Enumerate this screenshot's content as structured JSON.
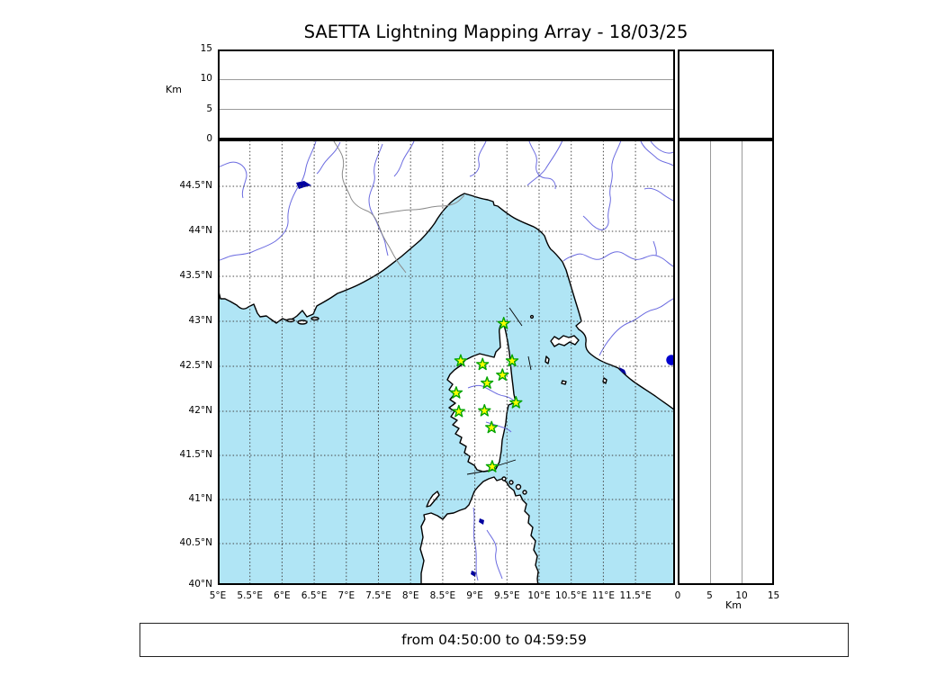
{
  "title": "SAETTA Lightning Mapping Array - 18/03/25",
  "footer": {
    "time_range": "from 04:50:00 to 04:59:59"
  },
  "colors": {
    "sea": "#b0e5f5",
    "land": "#ffffff",
    "coast": "#000000",
    "river": "#6b6be0",
    "lake": "#0000a0",
    "admin_border": "#8a8a8a",
    "grid": "#444444",
    "station_fill": "#ffff00",
    "station_stroke": "#00a400",
    "source_dot": "#0000cc"
  },
  "axes": {
    "map_x": {
      "ticks": [
        {
          "label": "5°E",
          "value": 5
        },
        {
          "label": "5.5°E",
          "value": 5.5
        },
        {
          "label": "6°E",
          "value": 6
        },
        {
          "label": "6.5°E",
          "value": 6.5
        },
        {
          "label": "7°E",
          "value": 7
        },
        {
          "label": "7.5°E",
          "value": 7.5
        },
        {
          "label": "8°E",
          "value": 8
        },
        {
          "label": "8.5°E",
          "value": 8.5
        },
        {
          "label": "9°E",
          "value": 9
        },
        {
          "label": "9.5°E",
          "value": 9.5
        },
        {
          "label": "10°E",
          "value": 10
        },
        {
          "label": "10.5°E",
          "value": 10.5
        },
        {
          "label": "11°E",
          "value": 11
        },
        {
          "label": "11.5°E",
          "value": 11.5
        }
      ]
    },
    "map_y": {
      "ticks": [
        {
          "label": "44.5°N",
          "value": 44.5
        },
        {
          "label": "44°N",
          "value": 44
        },
        {
          "label": "43.5°N",
          "value": 43.5
        },
        {
          "label": "43°N",
          "value": 43
        },
        {
          "label": "42.5°N",
          "value": 42.5
        },
        {
          "label": "42°N",
          "value": 42
        },
        {
          "label": "41.5°N",
          "value": 41.5
        },
        {
          "label": "41°N",
          "value": 41
        },
        {
          "label": "40.5°N",
          "value": 40.5
        },
        {
          "label": "40°N",
          "value": 40
        }
      ]
    },
    "alt_y": {
      "unit": "Km",
      "ticks": [
        {
          "label": "0",
          "value": 0
        },
        {
          "label": "5",
          "value": 5
        },
        {
          "label": "10",
          "value": 10
        },
        {
          "label": "15",
          "value": 15
        }
      ]
    },
    "alt_x": {
      "unit": "Km",
      "ticks": [
        {
          "label": "0",
          "value": 0
        },
        {
          "label": "5",
          "value": 5
        },
        {
          "label": "10",
          "value": 10
        },
        {
          "label": "15",
          "value": 15
        }
      ]
    }
  },
  "chart_data": {
    "type": "scatter",
    "title": "SAETTA Lightning Mapping Array - 18/03/25",
    "time_window": "from 04:50:00 to 04:59:59",
    "panels": {
      "map": {
        "xlim": [
          5,
          12.1
        ],
        "ylim": [
          40,
          45
        ],
        "grid": "0.5 deg dashed",
        "region": "Corsica / NW Mediterranean"
      },
      "top": {
        "ylabel": "Km",
        "ylim": [
          0,
          15
        ],
        "content": "altitude vs longitude (empty)"
      },
      "right": {
        "xlabel": "Km",
        "xlim": [
          0,
          15
        ],
        "content": "altitude vs latitude (empty)"
      }
    },
    "stations": {
      "name": "LMA stations (Corsica)",
      "marker": "star",
      "points": [
        {
          "lon": 9.45,
          "lat": 42.94
        },
        {
          "lon": 8.78,
          "lat": 42.52
        },
        {
          "lon": 9.12,
          "lat": 42.48
        },
        {
          "lon": 9.58,
          "lat": 42.52
        },
        {
          "lon": 9.43,
          "lat": 42.36
        },
        {
          "lon": 9.19,
          "lat": 42.27
        },
        {
          "lon": 8.71,
          "lat": 42.16
        },
        {
          "lon": 9.64,
          "lat": 42.05
        },
        {
          "lon": 9.15,
          "lat": 41.96
        },
        {
          "lon": 8.75,
          "lat": 41.95
        },
        {
          "lon": 9.26,
          "lat": 41.77
        },
        {
          "lon": 9.27,
          "lat": 41.33
        }
      ]
    },
    "sources": {
      "name": "lightning source",
      "marker": "circle",
      "points": [
        {
          "lon": 12.06,
          "lat": 42.53
        }
      ]
    }
  }
}
